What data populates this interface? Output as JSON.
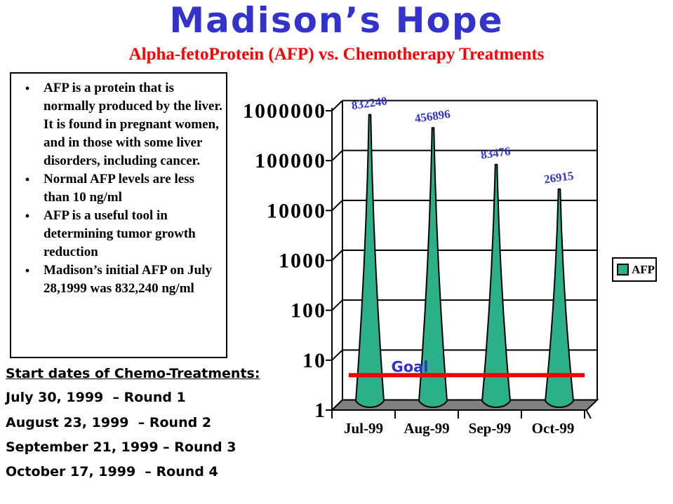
{
  "title": "Madison’s Hope",
  "subtitle": "Alpha-fetoProtein (AFP) vs. Chemotherapy Treatments",
  "info_box": {
    "bullets": [
      "AFP is a protein that is normally produced by the liver.  It is found in pregnant women, and in those with some liver disorders, including cancer.",
      "Normal AFP levels are less than 10 ng/ml",
      "AFP is a useful tool in determining tumor growth reduction",
      "Madison’s initial AFP on July 28,1999 was 832,240 ng/ml"
    ]
  },
  "chemo_schedule": {
    "heading": "Start dates of Chemo-Treatments:",
    "lines": [
      "July 30, 1999  – Round 1",
      "August 23, 1999  – Round 2",
      "September 21, 1999 – Round 3",
      "October 17, 1999  – Round 4"
    ]
  },
  "chart_data": {
    "type": "bar",
    "subtype": "3d-cone",
    "title": "",
    "categories": [
      "Jul-99",
      "Aug-99",
      "Sep-99",
      "Oct-99"
    ],
    "series": [
      {
        "name": "AFP",
        "values": [
          832240,
          456896,
          83476,
          26915
        ]
      }
    ],
    "data_labels": [
      "832240",
      "456896",
      "83476",
      "26915"
    ],
    "y_scale": "log",
    "ylim": [
      1,
      1000000
    ],
    "y_ticks": [
      "1000000",
      "100000",
      "10000",
      "1000",
      "100",
      "10",
      "1"
    ],
    "grid": true,
    "goal": {
      "label": "Goal",
      "value": 5
    },
    "legend": {
      "position": "right",
      "entries": [
        "AFP"
      ]
    },
    "colors": {
      "cone": "#2bb08a",
      "goal_line": "#ee0000",
      "data_label": "#3333cc",
      "goal_label": "#3333cc",
      "floor": "#808080",
      "axis": "#000000",
      "tick_label": "#000000"
    }
  },
  "colors": {
    "title": "#3333cc",
    "subtitle": "#ff0000"
  }
}
